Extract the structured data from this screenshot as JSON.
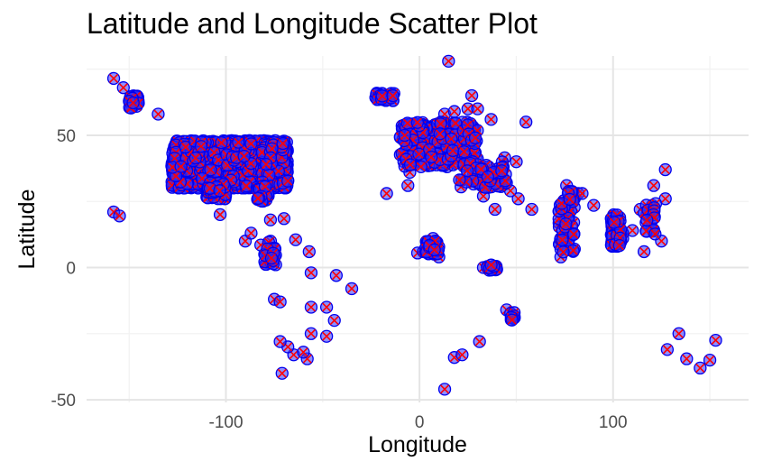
{
  "chart_data": {
    "type": "scatter",
    "title": "Latitude and Longitude Scatter Plot",
    "xlabel": "Longitude",
    "ylabel": "Latitude",
    "xlim": [
      -172,
      170
    ],
    "ylim": [
      -51,
      80
    ],
    "x_ticks": [
      -100,
      0,
      100
    ],
    "y_ticks": [
      -50,
      0,
      50
    ],
    "grid": true,
    "legend": "none",
    "colors": {
      "fill": "#3333ff",
      "outline": "#0000ee",
      "cross": "#ff0000"
    },
    "clusters": [
      {
        "x": [
          -128,
          -68
        ],
        "y": [
          30,
          48
        ],
        "n": 1400
      },
      {
        "x": [
          -110,
          -100
        ],
        "y": [
          26,
          32
        ],
        "n": 60
      },
      {
        "x": [
          -85,
          -78
        ],
        "y": [
          25,
          31
        ],
        "n": 40
      },
      {
        "x": [
          -10,
          30
        ],
        "y": [
          38,
          55
        ],
        "n": 260
      },
      {
        "x": [
          20,
          45
        ],
        "y": [
          30,
          40
        ],
        "n": 60
      },
      {
        "x": [
          -150,
          -145
        ],
        "y": [
          60,
          65
        ],
        "n": 30
      },
      {
        "x": [
          -23,
          -13
        ],
        "y": [
          63,
          66
        ],
        "n": 30
      },
      {
        "x": [
          99,
          104
        ],
        "y": [
          8,
          20
        ],
        "n": 80
      },
      {
        "x": [
          72,
          80
        ],
        "y": [
          5,
          30
        ],
        "n": 60
      },
      {
        "x": [
          3,
          10
        ],
        "y": [
          5,
          10
        ],
        "n": 40
      },
      {
        "x": [
          -80,
          -74
        ],
        "y": [
          0,
          10
        ],
        "n": 25
      },
      {
        "x": [
          116,
          122
        ],
        "y": [
          12,
          25
        ],
        "n": 20
      },
      {
        "x": [
          35,
          40
        ],
        "y": [
          -1,
          1
        ],
        "n": 15
      },
      {
        "x": [
          47,
          49
        ],
        "y": [
          -20,
          -17
        ],
        "n": 10
      }
    ],
    "points": [
      {
        "x": -158,
        "y": 71.5
      },
      {
        "x": -153,
        "y": 68
      },
      {
        "x": -135,
        "y": 58
      },
      {
        "x": -158,
        "y": 21
      },
      {
        "x": -155,
        "y": 19.5
      },
      {
        "x": -103,
        "y": 20
      },
      {
        "x": -90,
        "y": 10
      },
      {
        "x": -87,
        "y": 13
      },
      {
        "x": -82,
        "y": 8.5
      },
      {
        "x": -80,
        "y": 5
      },
      {
        "x": -77,
        "y": 18
      },
      {
        "x": -70,
        "y": 18.5
      },
      {
        "x": -64,
        "y": 10.5
      },
      {
        "x": -57,
        "y": 6
      },
      {
        "x": -56,
        "y": -2
      },
      {
        "x": -43,
        "y": -3
      },
      {
        "x": -35,
        "y": -8
      },
      {
        "x": -56,
        "y": -15
      },
      {
        "x": -48,
        "y": -15
      },
      {
        "x": -44,
        "y": -20
      },
      {
        "x": -48,
        "y": -26
      },
      {
        "x": -56,
        "y": -25
      },
      {
        "x": -65,
        "y": -33
      },
      {
        "x": -68,
        "y": -30
      },
      {
        "x": -72,
        "y": -28
      },
      {
        "x": -58,
        "y": -34.5
      },
      {
        "x": -60,
        "y": -32
      },
      {
        "x": -71,
        "y": -40
      },
      {
        "x": -75,
        "y": -12
      },
      {
        "x": -72,
        "y": -13
      },
      {
        "x": -17,
        "y": 28
      },
      {
        "x": -6,
        "y": 31
      },
      {
        "x": -5,
        "y": 36
      },
      {
        "x": -1,
        "y": 5.5
      },
      {
        "x": 2,
        "y": 6
      },
      {
        "x": 7,
        "y": 11
      },
      {
        "x": 10,
        "y": 4
      },
      {
        "x": 13,
        "y": 58
      },
      {
        "x": 15,
        "y": 78
      },
      {
        "x": 18,
        "y": 59
      },
      {
        "x": 25,
        "y": 60
      },
      {
        "x": 27,
        "y": 65
      },
      {
        "x": 30,
        "y": 60
      },
      {
        "x": 37,
        "y": 56
      },
      {
        "x": 44,
        "y": 41.5
      },
      {
        "x": 50,
        "y": 40
      },
      {
        "x": 55,
        "y": 55
      },
      {
        "x": 51,
        "y": 26
      },
      {
        "x": 47,
        "y": 29
      },
      {
        "x": 33,
        "y": 27
      },
      {
        "x": 39,
        "y": 22
      },
      {
        "x": 28,
        "y": 35
      },
      {
        "x": 13,
        "y": -46
      },
      {
        "x": 18,
        "y": -34
      },
      {
        "x": 22,
        "y": -33
      },
      {
        "x": 31,
        "y": -28
      },
      {
        "x": 33,
        "y": 0
      },
      {
        "x": 36,
        "y": -1
      },
      {
        "x": 45,
        "y": -16
      },
      {
        "x": 49,
        "y": -19
      },
      {
        "x": 58,
        "y": 22
      },
      {
        "x": 73,
        "y": 4
      },
      {
        "x": 76,
        "y": 31
      },
      {
        "x": 80,
        "y": 26
      },
      {
        "x": 82,
        "y": 28
      },
      {
        "x": 84,
        "y": 28
      },
      {
        "x": 78,
        "y": 12
      },
      {
        "x": 80,
        "y": 7
      },
      {
        "x": 90,
        "y": 23.5
      },
      {
        "x": 101,
        "y": 15
      },
      {
        "x": 105,
        "y": 11
      },
      {
        "x": 110,
        "y": 14
      },
      {
        "x": 114,
        "y": 22
      },
      {
        "x": 116,
        "y": 6
      },
      {
        "x": 120,
        "y": 15
      },
      {
        "x": 121,
        "y": 31
      },
      {
        "x": 127,
        "y": 37
      },
      {
        "x": 125,
        "y": 10
      },
      {
        "x": 127,
        "y": 26
      },
      {
        "x": 128,
        "y": -31
      },
      {
        "x": 134,
        "y": -25
      },
      {
        "x": 138,
        "y": -34.5
      },
      {
        "x": 145,
        "y": -38
      },
      {
        "x": 150,
        "y": -35
      },
      {
        "x": 153,
        "y": -27.5
      },
      {
        "x": 105,
        "y": 13
      }
    ]
  }
}
